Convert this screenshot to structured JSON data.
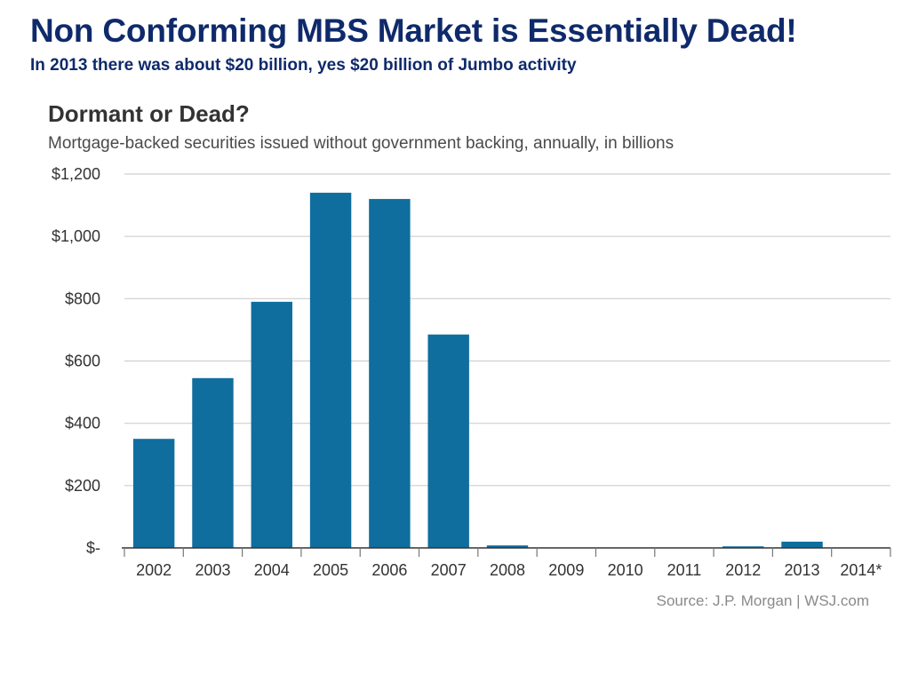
{
  "slide": {
    "title": "Non Conforming MBS Market is Essentially Dead!",
    "subtitle": "In 2013 there was about $20 billion, yes $20 billion of Jumbo activity"
  },
  "colors": {
    "bar": "#0f6e9e",
    "heading": "#0f2a6b"
  },
  "chart_data": {
    "type": "bar",
    "title": "Dormant or Dead?",
    "subtitle": "Mortgage-backed securities issued without government backing, annually, in billions",
    "categories": [
      "2002",
      "2003",
      "2004",
      "2005",
      "2006",
      "2007",
      "2008",
      "2009",
      "2010",
      "2011",
      "2012",
      "2013",
      "2014*"
    ],
    "values": [
      350,
      545,
      790,
      1140,
      1120,
      685,
      8,
      0,
      0,
      0,
      5,
      20,
      0
    ],
    "yticks": [
      0,
      200,
      400,
      600,
      800,
      1000,
      1200
    ],
    "ytick_labels": [
      "$-",
      "$200",
      "$400",
      "$600",
      "$800",
      "$1,000",
      "$1,200"
    ],
    "ylim": [
      0,
      1200
    ],
    "xlabel": "",
    "ylabel": "",
    "grid": true,
    "source": "Source: J.P. Morgan  |  WSJ.com"
  }
}
